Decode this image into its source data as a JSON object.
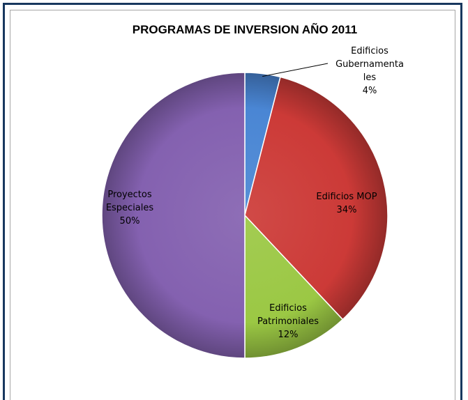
{
  "chart_data": {
    "type": "pie",
    "title": "PROGRAMAS DE INVERSION AÑO 2011",
    "legend": "none",
    "slices": [
      {
        "label_lines": [
          "Edificios",
          "Gubernamenta",
          "les",
          "4%"
        ],
        "name": "Edificios Gubernamentales",
        "value": 4,
        "color": "#4a86d4"
      },
      {
        "label_lines": [
          "Edificios MOP",
          "34%"
        ],
        "name": "Edificios MOP",
        "value": 34,
        "color": "#cc3a37"
      },
      {
        "label_lines": [
          "Edificios",
          "Patrimoniales",
          "12%"
        ],
        "name": "Edificios Patrimoniales",
        "value": 12,
        "color": "#9bc844"
      },
      {
        "label_lines": [
          "Proyectos",
          "Especiales",
          "50%"
        ],
        "name": "Proyectos Especiales",
        "value": 50,
        "color": "#8461b0"
      }
    ]
  }
}
